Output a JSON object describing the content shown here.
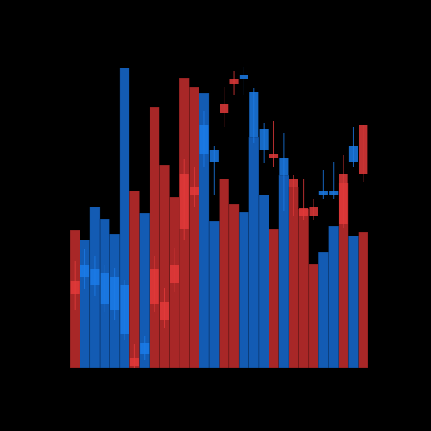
{
  "chart_data": [
    {
      "type": "bar",
      "values": [
        172,
        160,
        201,
        186,
        167,
        374,
        221,
        193,
        325,
        253,
        213,
        361,
        350,
        342,
        183,
        236,
        204,
        194,
        288,
        216,
        173,
        240,
        226,
        198,
        130,
        144,
        177,
        231,
        165,
        169
      ],
      "colors": [
        "#b22a2a",
        "#1560bd",
        "#1560bd",
        "#1560bd",
        "#1560bd",
        "#1560bd",
        "#b22a2a",
        "#1560bd",
        "#b22a2a",
        "#b22a2a",
        "#b22a2a",
        "#b22a2a",
        "#b22a2a",
        "#1560bd",
        "#1560bd",
        "#b22a2a",
        "#b22a2a",
        "#1560bd",
        "#1560bd",
        "#1560bd",
        "#b22a2a",
        "#1560bd",
        "#b22a2a",
        "#b22a2a",
        "#b22a2a",
        "#1560bd",
        "#1560bd",
        "#b22a2a",
        "#1560bd",
        "#b22a2a"
      ],
      "ylim": [
        0,
        380
      ]
    },
    {
      "type": "candlestick",
      "open": [
        109,
        113,
        103,
        80,
        73,
        43,
        13,
        18,
        123,
        82,
        128,
        241,
        226,
        266,
        256,
        329,
        360,
        360,
        288,
        272,
        267,
        240,
        236,
        199,
        200,
        216,
        216,
        241,
        257,
        303
      ],
      "high": [
        133,
        148,
        140,
        128,
        125,
        110,
        30,
        40,
        140,
        100,
        150,
        260,
        250,
        320,
        276,
        350,
        370,
        375,
        348,
        305,
        308,
        293,
        240,
        235,
        210,
        246,
        257,
        265,
        300,
        303
      ],
      "low": [
        73,
        98,
        90,
        70,
        60,
        35,
        0,
        10,
        70,
        50,
        95,
        160,
        200,
        250,
        215,
        300,
        340,
        340,
        280,
        255,
        250,
        195,
        190,
        185,
        185,
        210,
        210,
        175,
        250,
        232
      ],
      "close": [
        92,
        128,
        123,
        118,
        113,
        103,
        3,
        31,
        80,
        60,
        106,
        173,
        215,
        303,
        272,
        317,
        354,
        365,
        344,
        298,
        262,
        262,
        226,
        190,
        190,
        221,
        221,
        180,
        277,
        241
      ],
      "up_color": "#1b7be8",
      "down_color": "#e23a3a",
      "ylim": [
        0,
        380
      ]
    }
  ]
}
